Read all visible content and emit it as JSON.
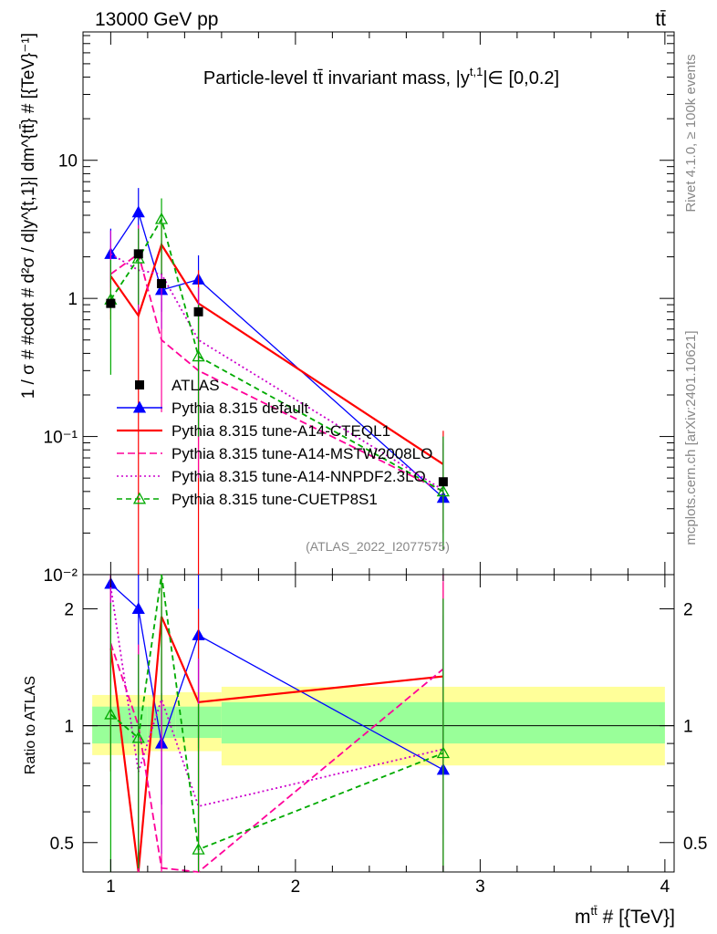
{
  "header": {
    "left": "13000 GeV pp",
    "right": "tt̄"
  },
  "side": {
    "rivet": "Rivet 4.1.0, ≥ 100k events",
    "mcplots": "mcplots.cern.ch [arXiv:2401.10621]"
  },
  "chart_data": {
    "type": "line",
    "title": "Particle-level t̄t invariant mass, |y^{t,1}| ∈ [0,0.2]",
    "title_text": "Particle-level tt̄ invariant mass, |y",
    "title_sup": "t,1",
    "title_tail": "|∈ [0,0.2]",
    "analysis_id": "(ATLAS_2022_I2077575)",
    "xlabel": "m^{tt̄} # [{TeV}]",
    "xlabel_main": "m",
    "xlabel_sup": "tt̄",
    "xlabel_tail": " # [{TeV}]",
    "ylabel": "1 / σ # #cdot # d²σ / d|y^{t,1}| dm^{tt̄} # [{TeV}⁻¹]",
    "ylabel_ratio": "Ratio to ATLAS",
    "xlim": [
      0.85,
      4.05
    ],
    "ylim": [
      0.01,
      85
    ],
    "yscale": "log",
    "ratio_ylim": [
      0.42,
      2.45
    ],
    "x_ticks": [
      1,
      2,
      3,
      4
    ],
    "x_tick_labels": [
      "1",
      "2",
      "3",
      "4"
    ],
    "y_ticks": [
      0.01,
      0.1,
      1,
      10
    ],
    "y_tick_labels": [
      "10⁻²",
      "10⁻¹",
      "1",
      "10"
    ],
    "ratio_ticks": [
      0.5,
      1,
      2
    ],
    "ratio_tick_labels": [
      "0.5",
      "1",
      "2"
    ],
    "bins": [
      [
        0.9,
        1.1
      ],
      [
        1.1,
        1.2
      ],
      [
        1.2,
        1.35
      ],
      [
        1.35,
        1.6
      ],
      [
        1.6,
        4.0
      ]
    ],
    "band_inner": [
      [
        0.9,
        1.12
      ],
      [
        0.9,
        1.12
      ],
      [
        0.93,
        1.12
      ],
      [
        0.93,
        1.12
      ],
      [
        0.9,
        1.15
      ]
    ],
    "band_outer": [
      [
        0.84,
        1.2
      ],
      [
        0.84,
        1.2
      ],
      [
        0.86,
        1.2
      ],
      [
        0.86,
        1.22
      ],
      [
        0.79,
        1.26
      ]
    ],
    "ref": {
      "name": "ATLAS",
      "x": [
        1.0,
        1.15,
        1.275,
        1.475,
        2.8
      ],
      "y": [
        0.92,
        2.1,
        1.28,
        0.8,
        0.047
      ]
    },
    "series": [
      {
        "name": "Pythia 8.315 default",
        "color": "#0000ff",
        "dash": "",
        "marker": "triangle",
        "x": [
          1.0,
          1.15,
          1.275,
          1.475,
          2.8
        ],
        "y": [
          2.1,
          4.2,
          1.15,
          1.37,
          0.036
        ],
        "err_lo": [
          1.3,
          2.2,
          0.8,
          0.7,
          0.036
        ],
        "err_hi": [
          3.2,
          6.3,
          1.55,
          2.05,
          0.09
        ],
        "ratio": [
          2.32,
          2.0,
          0.9,
          1.71,
          0.77
        ]
      },
      {
        "name": "Pythia 8.315 tune-A14-CTEQL1",
        "color": "#ff0000",
        "dash": "",
        "marker": "none",
        "x": [
          1.0,
          1.15,
          1.275,
          1.475,
          2.8
        ],
        "y": [
          1.45,
          0.75,
          2.45,
          0.92,
          0.063
        ],
        "err_lo": [
          0.7,
          0.005,
          1.1,
          0.005,
          0.02
        ],
        "err_hi": [
          2.3,
          2.6,
          3.7,
          1.6,
          0.11
        ],
        "ratio": [
          1.58,
          0.36,
          1.91,
          1.15,
          1.34
        ]
      },
      {
        "name": "Pythia 8.315 tune-A14-MSTW2008LO",
        "color": "#ff0099",
        "dash": "8,4",
        "marker": "none",
        "x": [
          1.0,
          1.15,
          1.275,
          1.475,
          2.8
        ],
        "y": [
          1.5,
          2.1,
          0.5,
          0.3,
          0.04
        ],
        "err_lo": [
          0.8,
          0.9,
          0.15,
          0.05,
          0.015
        ],
        "err_hi": [
          2.4,
          3.4,
          1.0,
          0.8,
          0.1
        ],
        "ratio": [
          1.63,
          1.0,
          0.43,
          0.37,
          1.4
        ]
      },
      {
        "name": "Pythia 8.315 tune-A14-NNPDF2.3LO",
        "color": "#cc00cc",
        "dash": "2,3",
        "marker": "none",
        "x": [
          1.0,
          1.15,
          1.275,
          1.475,
          2.8
        ],
        "y": [
          2.1,
          1.6,
          1.5,
          0.5,
          0.041
        ],
        "err_lo": [
          1.2,
          0.8,
          0.6,
          0.1,
          0.015
        ],
        "err_hi": [
          3.1,
          2.6,
          2.6,
          1.2,
          0.1
        ],
        "ratio": [
          2.28,
          0.76,
          1.17,
          0.62,
          0.87
        ]
      },
      {
        "name": "Pythia 8.315 tune-CUETP8S1",
        "color": "#00aa00",
        "dash": "6,4",
        "marker": "triangle-open",
        "x": [
          1.0,
          1.15,
          1.275,
          1.475,
          2.8
        ],
        "y": [
          0.98,
          1.95,
          3.75,
          0.38,
          0.04
        ],
        "err_lo": [
          0.28,
          0.9,
          1.5,
          0.1,
          0.015
        ],
        "err_hi": [
          1.9,
          3.2,
          5.3,
          0.9,
          0.1
        ],
        "ratio": [
          1.07,
          0.93,
          2.9,
          0.48,
          0.85
        ]
      }
    ]
  }
}
